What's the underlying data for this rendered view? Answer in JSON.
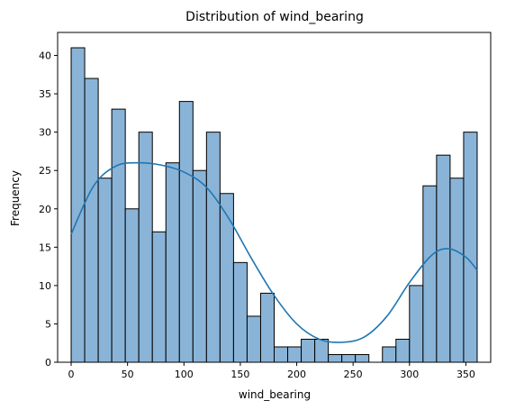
{
  "chart_data": {
    "type": "bar",
    "title": "Distribution of wind_bearing",
    "xlabel": "wind_bearing",
    "ylabel": "Frequency",
    "xlim": [
      -12,
      372
    ],
    "ylim": [
      0,
      43
    ],
    "x_ticks": [
      0,
      50,
      100,
      150,
      200,
      250,
      300,
      350
    ],
    "y_ticks": [
      0,
      5,
      10,
      15,
      20,
      25,
      30,
      35,
      40
    ],
    "bin_width": 12,
    "bins": [
      {
        "x0": 0,
        "count": 41
      },
      {
        "x0": 12,
        "count": 37
      },
      {
        "x0": 24,
        "count": 24
      },
      {
        "x0": 36,
        "count": 33
      },
      {
        "x0": 48,
        "count": 20
      },
      {
        "x0": 60,
        "count": 30
      },
      {
        "x0": 72,
        "count": 17
      },
      {
        "x0": 84,
        "count": 26
      },
      {
        "x0": 96,
        "count": 34
      },
      {
        "x0": 108,
        "count": 25
      },
      {
        "x0": 120,
        "count": 30
      },
      {
        "x0": 132,
        "count": 22
      },
      {
        "x0": 144,
        "count": 13
      },
      {
        "x0": 156,
        "count": 6
      },
      {
        "x0": 168,
        "count": 9
      },
      {
        "x0": 180,
        "count": 2
      },
      {
        "x0": 192,
        "count": 2
      },
      {
        "x0": 204,
        "count": 3
      },
      {
        "x0": 216,
        "count": 3
      },
      {
        "x0": 228,
        "count": 1
      },
      {
        "x0": 240,
        "count": 1
      },
      {
        "x0": 252,
        "count": 1
      },
      {
        "x0": 264,
        "count": 0
      },
      {
        "x0": 276,
        "count": 2
      },
      {
        "x0": 288,
        "count": 3
      },
      {
        "x0": 300,
        "count": 10
      },
      {
        "x0": 312,
        "count": 23
      },
      {
        "x0": 324,
        "count": 27
      },
      {
        "x0": 336,
        "count": 24
      },
      {
        "x0": 348,
        "count": 30
      }
    ],
    "kde": {
      "x": [
        0,
        20,
        40,
        60,
        80,
        100,
        120,
        140,
        160,
        180,
        200,
        220,
        240,
        260,
        280,
        300,
        320,
        335,
        350,
        360
      ],
      "y": [
        16.7,
        23.0,
        25.6,
        26.0,
        25.7,
        24.8,
        22.8,
        18.7,
        13.5,
        8.7,
        5.0,
        3.0,
        2.6,
        3.3,
        6.0,
        10.4,
        14.0,
        14.8,
        13.7,
        12.0
      ]
    },
    "grid": false,
    "colors": {
      "bar_fill": "#8ab4d7",
      "bar_edge": "#000000",
      "kde_line": "#1f77b4"
    }
  }
}
